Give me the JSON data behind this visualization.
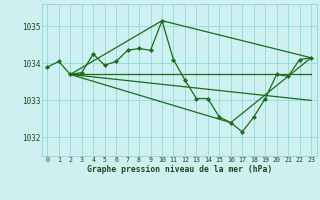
{
  "title": "Graphe pression niveau de la mer (hPa)",
  "background_color": "#cff0f0",
  "grid_color": "#99dddd",
  "line_color": "#1a6b1a",
  "marker_color": "#1a6b1a",
  "xlim": [
    -0.5,
    23.5
  ],
  "ylim": [
    1031.5,
    1035.6
  ],
  "yticks": [
    1032,
    1033,
    1034,
    1035
  ],
  "xticks": [
    0,
    1,
    2,
    3,
    4,
    5,
    6,
    7,
    8,
    9,
    10,
    11,
    12,
    13,
    14,
    15,
    16,
    17,
    18,
    19,
    20,
    21,
    22,
    23
  ],
  "series_main": {
    "x": [
      0,
      1,
      2,
      3,
      4,
      5,
      6,
      7,
      8,
      9,
      10,
      11,
      12,
      13,
      14,
      15,
      16,
      17,
      18,
      19,
      20,
      21,
      22,
      23
    ],
    "y": [
      1033.9,
      1034.05,
      1033.7,
      1033.75,
      1034.25,
      1033.95,
      1034.05,
      1034.35,
      1034.4,
      1034.35,
      1035.15,
      1034.1,
      1033.55,
      1033.05,
      1033.05,
      1032.55,
      1032.4,
      1032.15,
      1032.55,
      1033.05,
      1033.7,
      1033.65,
      1034.1,
      1034.15
    ]
  },
  "fan_lines": [
    {
      "x": [
        2,
        23
      ],
      "y": [
        1033.7,
        1033.7
      ]
    },
    {
      "x": [
        2,
        10,
        23
      ],
      "y": [
        1033.7,
        1035.15,
        1034.15
      ]
    },
    {
      "x": [
        2,
        16,
        23
      ],
      "y": [
        1033.7,
        1032.4,
        1034.15
      ]
    },
    {
      "x": [
        2,
        23
      ],
      "y": [
        1033.7,
        1033.0
      ]
    }
  ]
}
